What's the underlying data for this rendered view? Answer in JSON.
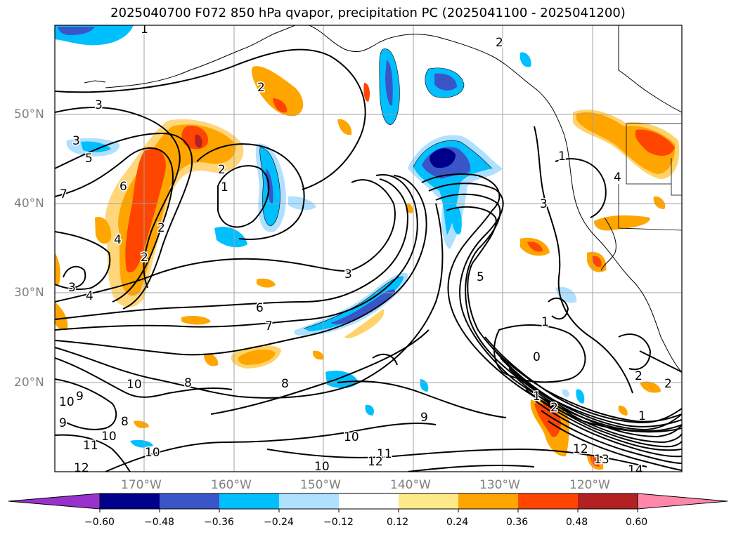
{
  "title": "2025040700 F072 850 hPa qvapor, precipitation PC (2025041100 - 2025041200)",
  "lat_labels": [
    "50°N",
    "40°N",
    "30°N",
    "20°N"
  ],
  "lon_labels": [
    "170°W",
    "160°W",
    "150°W",
    "140°W",
    "130°W",
    "120°W"
  ],
  "colorbar": {
    "ticks": [
      "−0.60",
      "−0.48",
      "−0.36",
      "−0.24",
      "−0.12",
      "0.12",
      "0.24",
      "0.36",
      "0.48",
      "0.60"
    ],
    "colors": [
      "#9932cc",
      "#00008b",
      "#3a55c8",
      "#00bfff",
      "#b0e0ff",
      "#ffffff",
      "#ffea8a",
      "#ffa500",
      "#ff4500",
      "#b22222",
      "#ff88aa"
    ]
  },
  "contour_labels": [
    "1",
    "2",
    "2",
    "3",
    "3",
    "5",
    "6",
    "2",
    "1",
    "7",
    "4",
    "2",
    "2",
    "3",
    "4",
    "3",
    "6",
    "7",
    "8",
    "8",
    "10",
    "9",
    "10",
    "9",
    "8",
    "11",
    "10",
    "10",
    "12",
    "10",
    "11",
    "12",
    "9",
    "10",
    "5",
    "3",
    "1",
    "0",
    "2",
    "2",
    "1",
    "2",
    "1",
    "1",
    "12",
    "13",
    "14",
    "4"
  ]
}
